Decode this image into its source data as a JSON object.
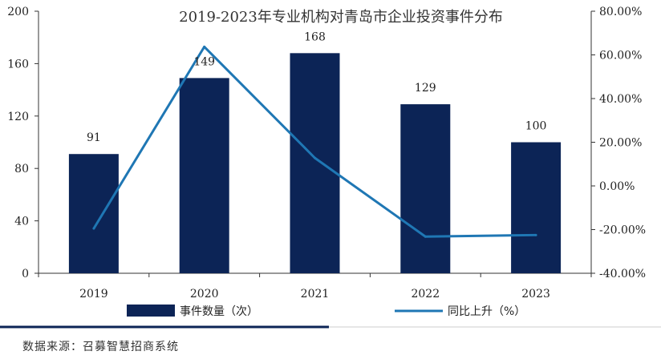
{
  "chart_data": {
    "type": "bar",
    "title": "2019-2023年专业机构对青岛市企业投资事件分布",
    "categories": [
      "2019",
      "2020",
      "2021",
      "2022",
      "2023"
    ],
    "series": [
      {
        "name": "事件数量（次）",
        "type": "bar",
        "axis": "left",
        "values": [
          91,
          149,
          168,
          129,
          100
        ],
        "color": "#0c2456"
      },
      {
        "name": "同比上升（%）",
        "type": "line",
        "axis": "right",
        "values": [
          -19.5,
          63.7,
          12.8,
          -23.2,
          -22.5
        ],
        "color": "#1f77b4"
      }
    ],
    "data_labels": [
      "91",
      "149",
      "168",
      "129",
      "100"
    ],
    "y_left": {
      "min": 0,
      "max": 200,
      "ticks": [
        "0",
        "40",
        "80",
        "120",
        "160",
        "200"
      ]
    },
    "y_right": {
      "min": -40,
      "max": 80,
      "ticks": [
        "-40.00%",
        "-20.00%",
        "0.00%",
        "20.00%",
        "40.00%",
        "60.00%",
        "80.00%"
      ]
    },
    "legend_position": "bottom"
  },
  "source_text": "数据来源：召募智慧招商系统"
}
